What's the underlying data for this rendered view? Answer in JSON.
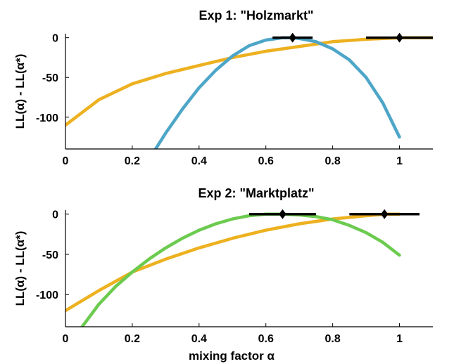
{
  "chart_data": [
    {
      "type": "line",
      "title": "Exp 1: \"Holzmarkt\"",
      "xlabel": "",
      "ylabel": "LL(α) - LL(α*)",
      "xlim": [
        0,
        1.1
      ],
      "ylim": [
        -140,
        5
      ],
      "xticks": [
        0,
        0.2,
        0.4,
        0.6,
        0.8,
        1
      ],
      "xtick_labels": [
        "0",
        "0.2",
        "0.4",
        "0.6",
        "0.8",
        "1"
      ],
      "yticks": [
        0,
        -50,
        -100
      ],
      "ytick_labels": [
        "0",
        "-50",
        "-100"
      ],
      "grid": false,
      "legend": "none",
      "series": [
        {
          "color": "#EDB120",
          "x": [
            0,
            0.1,
            0.2,
            0.3,
            0.4,
            0.5,
            0.6,
            0.7,
            0.8,
            0.9,
            1.0,
            1.1
          ],
          "y": [
            -110,
            -78,
            -58,
            -45,
            -35,
            -25,
            -17,
            -11,
            -5,
            -2,
            0,
            0
          ]
        },
        {
          "color": "#4DA6C8",
          "x": [
            0.27,
            0.3,
            0.35,
            0.4,
            0.45,
            0.5,
            0.55,
            0.6,
            0.65,
            0.68,
            0.7,
            0.75,
            0.8,
            0.85,
            0.9,
            0.95,
            1.0
          ],
          "y": [
            -140,
            -120,
            -90,
            -63,
            -41,
            -23,
            -10,
            -3,
            0,
            0,
            -1,
            -5,
            -14,
            -28,
            -50,
            -82,
            -125
          ]
        }
      ],
      "error_bars": [
        {
          "center": 0.68,
          "low": 0.62,
          "high": 0.74,
          "y": 0
        },
        {
          "center": 1.0,
          "low": 0.9,
          "high": 1.1,
          "y": 0
        }
      ]
    },
    {
      "type": "line",
      "title": "Exp 2: \"Marktplatz\"",
      "xlabel": "mixing factor α",
      "ylabel": "LL(α) - LL(α*)",
      "xlim": [
        0,
        1.1
      ],
      "ylim": [
        -140,
        5
      ],
      "xticks": [
        0,
        0.2,
        0.4,
        0.6,
        0.8,
        1
      ],
      "xtick_labels": [
        "0",
        "0.2",
        "0.4",
        "0.6",
        "0.8",
        "1"
      ],
      "yticks": [
        0,
        -50,
        -100
      ],
      "ytick_labels": [
        "0",
        "-50",
        "-100"
      ],
      "grid": false,
      "legend": "none",
      "series": [
        {
          "color": "#EDB120",
          "x": [
            0,
            0.1,
            0.2,
            0.3,
            0.4,
            0.5,
            0.6,
            0.7,
            0.8,
            0.9,
            0.96,
            1.0
          ],
          "y": [
            -120,
            -95,
            -72,
            -56,
            -42,
            -30,
            -20,
            -12,
            -6,
            -2,
            0,
            0
          ]
        },
        {
          "color": "#6CCB4F",
          "x": [
            0.05,
            0.1,
            0.15,
            0.2,
            0.25,
            0.3,
            0.35,
            0.4,
            0.45,
            0.5,
            0.55,
            0.6,
            0.65,
            0.7,
            0.75,
            0.8,
            0.85,
            0.9,
            0.95,
            1.0
          ],
          "y": [
            -140,
            -112,
            -90,
            -72,
            -56,
            -42,
            -30,
            -20,
            -12,
            -6,
            -2,
            0,
            0,
            -1,
            -3,
            -7,
            -14,
            -23,
            -35,
            -51
          ]
        }
      ],
      "error_bars": [
        {
          "center": 0.65,
          "low": 0.55,
          "high": 0.75,
          "y": 0
        },
        {
          "center": 0.955,
          "low": 0.85,
          "high": 1.06,
          "y": 0
        }
      ]
    }
  ]
}
